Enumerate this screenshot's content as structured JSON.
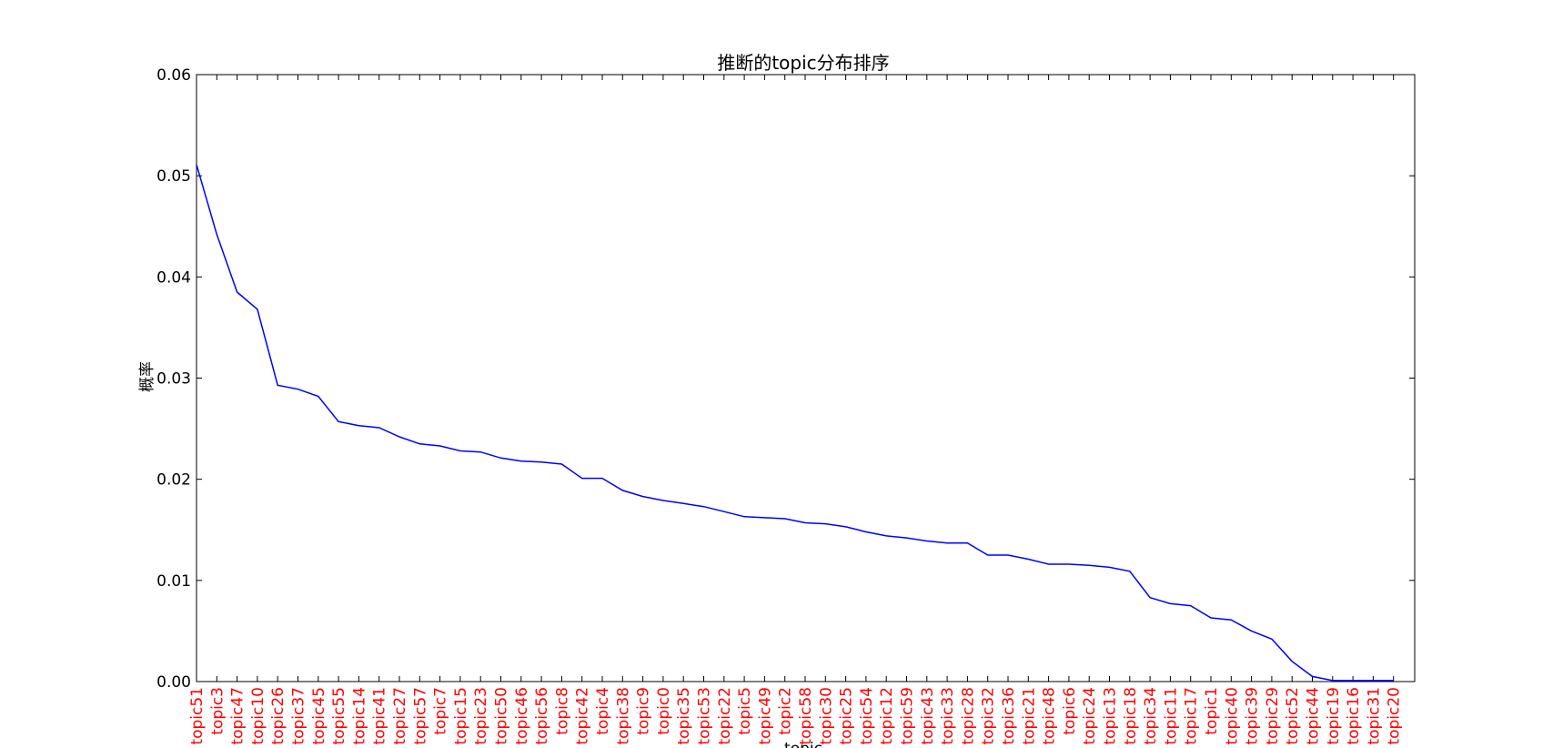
{
  "chart_data": {
    "type": "line",
    "title": "推断的topic分布排序",
    "xlabel": "topic",
    "ylabel": "概率",
    "ylim": [
      0,
      0.06
    ],
    "yticks": [
      "0.00",
      "0.01",
      "0.02",
      "0.03",
      "0.04",
      "0.05",
      "0.06"
    ],
    "grid": false,
    "tick_label_color": "#ff0000",
    "line_color": "#0000ff",
    "categories": [
      "topic51",
      "topic3",
      "topic47",
      "topic10",
      "topic26",
      "topic37",
      "topic45",
      "topic55",
      "topic14",
      "topic41",
      "topic27",
      "topic57",
      "topic7",
      "topic15",
      "topic23",
      "topic50",
      "topic46",
      "topic56",
      "topic8",
      "topic42",
      "topic4",
      "topic38",
      "topic9",
      "topic0",
      "topic35",
      "topic53",
      "topic22",
      "topic5",
      "topic49",
      "topic2",
      "topic58",
      "topic30",
      "topic25",
      "topic54",
      "topic12",
      "topic59",
      "topic43",
      "topic33",
      "topic28",
      "topic32",
      "topic36",
      "topic21",
      "topic48",
      "topic6",
      "topic24",
      "topic13",
      "topic18",
      "topic34",
      "topic11",
      "topic17",
      "topic1",
      "topic40",
      "topic39",
      "topic29",
      "topic52",
      "topic44",
      "topic19",
      "topic16",
      "topic31",
      "topic20"
    ],
    "series": [
      {
        "values": [
          0.0511,
          0.0442,
          0.0385,
          0.0368,
          0.0293,
          0.0289,
          0.0282,
          0.0257,
          0.0253,
          0.0251,
          0.0242,
          0.0235,
          0.0233,
          0.0228,
          0.0227,
          0.0221,
          0.0218,
          0.0217,
          0.0215,
          0.0201,
          0.0201,
          0.0189,
          0.0183,
          0.0179,
          0.0176,
          0.0173,
          0.0168,
          0.0163,
          0.0162,
          0.0161,
          0.0157,
          0.0156,
          0.0153,
          0.0148,
          0.0144,
          0.0142,
          0.0139,
          0.0137,
          0.0137,
          0.0125,
          0.0125,
          0.0121,
          0.0116,
          0.0116,
          0.0115,
          0.0113,
          0.0109,
          0.0083,
          0.0077,
          0.0075,
          0.0063,
          0.0061,
          0.005,
          0.0042,
          0.002,
          0.0005,
          0.0001,
          0.0001,
          0.0001,
          0.0001
        ]
      }
    ]
  }
}
